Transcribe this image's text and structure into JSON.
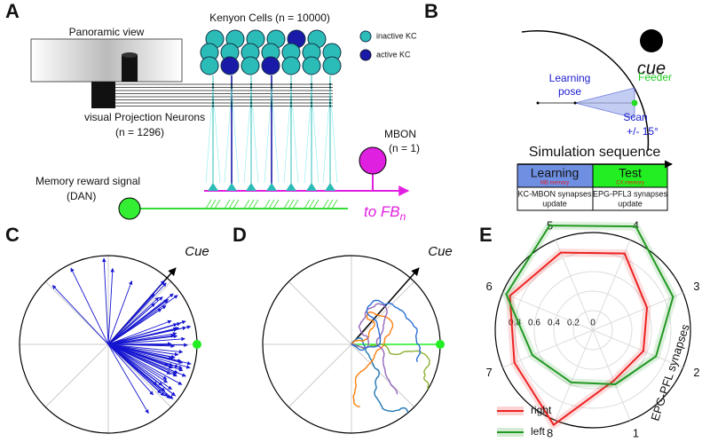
{
  "panel_labels": [
    "A",
    "B",
    "C",
    "D",
    "E"
  ],
  "panel_a": {
    "kenyon_cells": "Kenyon Cells (n = 10000)",
    "panoramic_view": "Panoramic view",
    "vpn": "visual Projection Neurons",
    "vpn_n": "(n = 1296)",
    "inactive_kc": "inactive KC",
    "active_kc": "active KC",
    "mbon": "MBON",
    "mbon_n": "(n = 1)",
    "reward": "Memory reward signal",
    "dan": "(DAN)",
    "to_fb": "to FB",
    "to_fb_sub": "n"
  },
  "panel_b": {
    "cue": "cue",
    "learning_pose_1": "Learning",
    "learning_pose_2": "pose",
    "feeder": "Feeder",
    "scan_1": "Scan",
    "scan_2": "+/- 15°",
    "sequence_title": "Simulation sequence",
    "learning": "Learning",
    "mb_memory": "MB memory",
    "test": "Test",
    "cx_memory": "CX memory",
    "learning_note_1": "KC-MBON synapses",
    "learning_note_2": "update",
    "test_note_1": "EPG-PFL3 synapses",
    "test_note_2": "update"
  },
  "panel_c": {
    "cue": "Cue"
  },
  "panel_d": {
    "cue": "Cue"
  },
  "chart_data": {
    "type": "radar",
    "axis_label": "EPG-PFL synapses",
    "categories": [
      "1",
      "2",
      "3",
      "4",
      "5",
      "6",
      "7",
      "8"
    ],
    "series": [
      {
        "name": "right",
        "color": "#ee2222",
        "values": [
          0.56,
          0.56,
          0.6,
          0.85,
          0.86,
          0.92,
          0.87,
          1.05
        ]
      },
      {
        "name": "left",
        "color": "#229922",
        "values": [
          0.6,
          0.7,
          0.89,
          1.15,
          1.16,
          0.96,
          0.67,
          0.58
        ]
      }
    ],
    "ylim": [
      0,
      1
    ],
    "yticks": [
      0,
      0.2,
      0.4,
      0.6,
      0.8
    ],
    "grid": true
  }
}
